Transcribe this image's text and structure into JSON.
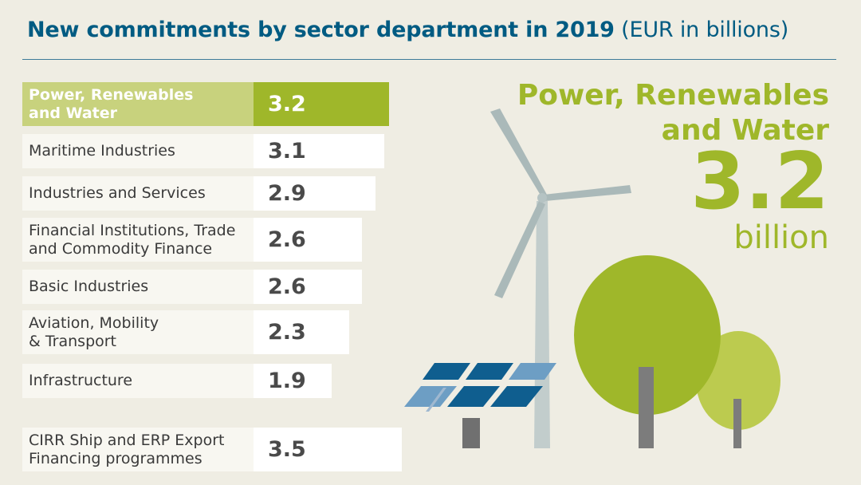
{
  "title": {
    "main": "New commitments by sector department in 2019",
    "unit": "(EUR in billions)"
  },
  "highlight": {
    "name_line1": "Power, Renewables",
    "name_line2": "and Water",
    "value": "3.2",
    "unit": "billion"
  },
  "colors": {
    "title": "#005b82",
    "accent_green": "#9fb72a",
    "accent_light": "#c8d27d",
    "background": "#efede3",
    "solar_dark": "#0f5e8f",
    "solar_light": "#6d9ec4"
  },
  "chart_data": {
    "type": "bar",
    "title": "New commitments by sector department in 2019",
    "unit": "EUR in billions",
    "categories": [
      [
        "Power, Renewables",
        "and Water"
      ],
      [
        "Maritime Industries"
      ],
      [
        "Industries and Services"
      ],
      [
        "Financial Institutions, Trade",
        "and Commodity Finance"
      ],
      [
        "Basic Industries"
      ],
      [
        "Aviation, Mobility",
        "& Transport"
      ],
      [
        "Infrastructure"
      ],
      [
        "CIRR Ship and ERP Export",
        "Financing programmes"
      ]
    ],
    "values": [
      3.2,
      3.1,
      2.9,
      2.6,
      2.6,
      2.3,
      1.9,
      3.5
    ],
    "value_labels": [
      "3.2",
      "3.1",
      "2.9",
      "2.6",
      "2.6",
      "2.3",
      "1.9",
      "3.5"
    ],
    "highlighted_index": 0
  },
  "illustration": {
    "icons": [
      "wind-turbine-icon",
      "solar-panel-icon",
      "tree-icon"
    ]
  }
}
